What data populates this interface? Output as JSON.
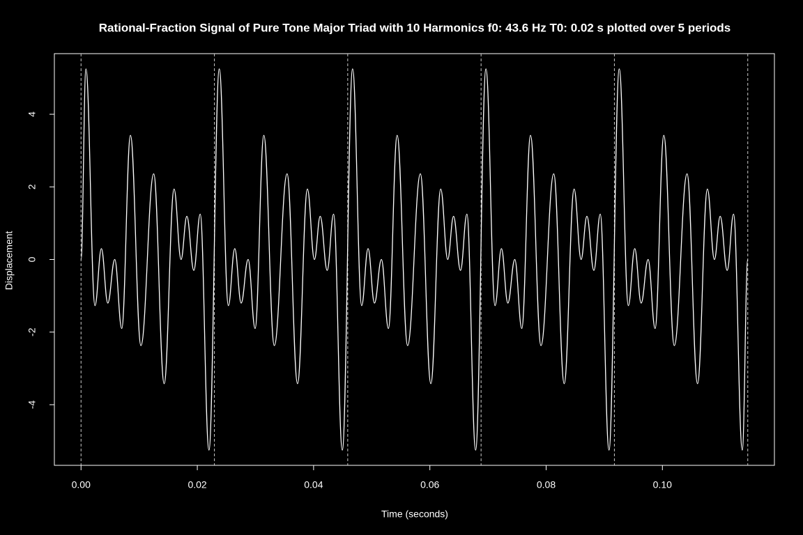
{
  "chart_data": {
    "type": "line",
    "title": "Rational-Fraction Signal of Pure Tone Major Triad with 10 Harmonics f0: 43.6 Hz  T0: 0.02 s  plotted over 5 periods",
    "x_label": "Time (seconds)",
    "y_label": "Displacement",
    "x": [
      0,
      0.00084,
      0.0024,
      0.0035,
      0.0046,
      0.0058,
      0.007,
      0.0085,
      0.0103,
      0.0125,
      0.0143,
      0.016,
      0.0172,
      0.0182,
      0.0194,
      0.0205,
      0.022,
      0.02378,
      0.02534,
      0.02644,
      0.02754,
      0.02874,
      0.02994,
      0.03144,
      0.03324,
      0.03544,
      0.03724,
      0.03894,
      0.04014,
      0.04114,
      0.04234,
      0.04344,
      0.04494,
      0.04671,
      0.04827,
      0.04937,
      0.05047,
      0.05167,
      0.05287,
      0.05437,
      0.05617,
      0.05837,
      0.06017,
      0.06187,
      0.06307,
      0.06407,
      0.06527,
      0.06637,
      0.06787,
      0.06965,
      0.07121,
      0.07231,
      0.07341,
      0.07461,
      0.07581,
      0.07731,
      0.07911,
      0.08131,
      0.08311,
      0.08481,
      0.08601,
      0.08701,
      0.08821,
      0.08931,
      0.09081,
      0.09258,
      0.09414,
      0.09524,
      0.09634,
      0.09754,
      0.09874,
      0.10024,
      0.10204,
      0.10424,
      0.10604,
      0.10774,
      0.10894,
      0.10994,
      0.11114,
      0.11224,
      0.11374,
      0.11468
    ],
    "series": [
      {
        "color": "#ffffff",
        "values": [
          0,
          5.25,
          -1.27,
          0.3,
          -1.2,
          0,
          -1.9,
          3.42,
          -2.37,
          2.36,
          -3.42,
          1.94,
          0,
          1.19,
          -0.3,
          1.25,
          -5.25,
          5.25,
          -1.27,
          0.3,
          -1.2,
          0,
          -1.9,
          3.42,
          -2.37,
          2.36,
          -3.42,
          1.94,
          0,
          1.19,
          -0.3,
          1.25,
          -5.25,
          5.25,
          -1.27,
          0.3,
          -1.2,
          0,
          -1.9,
          3.42,
          -2.37,
          2.36,
          -3.42,
          1.94,
          0,
          1.19,
          -0.3,
          1.25,
          -5.25,
          5.25,
          -1.27,
          0.3,
          -1.2,
          0,
          -1.9,
          3.42,
          -2.37,
          2.36,
          -3.42,
          1.94,
          0,
          1.19,
          -0.3,
          1.25,
          -5.25,
          5.25,
          -1.27,
          0.3,
          -1.2,
          0,
          -1.9,
          3.42,
          -2.37,
          2.36,
          -3.42,
          1.94,
          0,
          1.19,
          -0.3,
          1.25,
          -5.25,
          0
        ]
      }
    ],
    "period_lines": [
      0,
      0.02294,
      0.04587,
      0.06881,
      0.09174,
      0.11468
    ],
    "xlim": [
      -0.004587,
      0.119266
    ],
    "ylim": [
      -5.67,
      5.67
    ],
    "xticks": [
      {
        "value": 0,
        "label": "0.00"
      },
      {
        "value": 0.02,
        "label": "0.02"
      },
      {
        "value": 0.04,
        "label": "0.04"
      },
      {
        "value": 0.06,
        "label": "0.06"
      },
      {
        "value": 0.08,
        "label": "0.08"
      },
      {
        "value": 0.1,
        "label": "0.10"
      }
    ],
    "yticks": [
      -4,
      -2,
      0,
      2,
      4
    ]
  }
}
